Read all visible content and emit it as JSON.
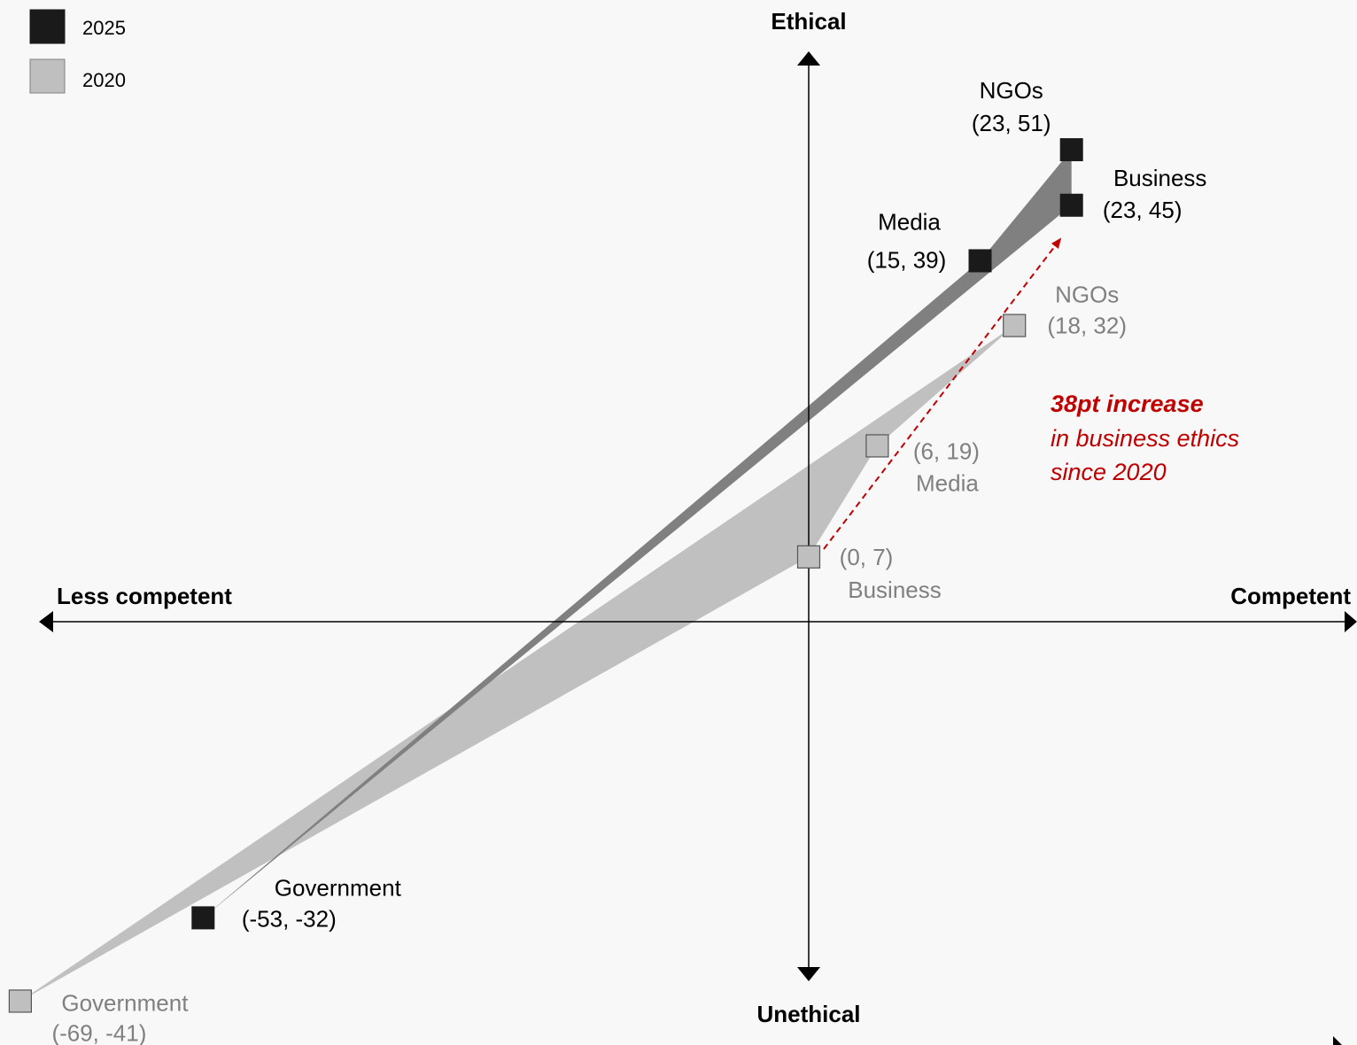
{
  "chart_data": {
    "type": "scatter",
    "x_axis": {
      "negative_label": "Less competent",
      "positive_label": "Competent"
    },
    "y_axis": {
      "positive_label": "Ethical",
      "negative_label": "Unethical"
    },
    "legend": [
      {
        "name": "2025",
        "color": "#1a1a1a"
      },
      {
        "name": "2020",
        "color": "#bfbfbf"
      }
    ],
    "series": [
      {
        "name": "2025",
        "points": [
          {
            "category": "NGOs",
            "x": 23,
            "y": 51,
            "label": "(23, 51)"
          },
          {
            "category": "Business",
            "x": 23,
            "y": 45,
            "label": "(23, 45)"
          },
          {
            "category": "Media",
            "x": 15,
            "y": 39,
            "label": "(15, 39)"
          },
          {
            "category": "Government",
            "x": -53,
            "y": -32,
            "label": "(-53, -32)"
          }
        ]
      },
      {
        "name": "2020",
        "points": [
          {
            "category": "NGOs",
            "x": 18,
            "y": 32,
            "label": "(18, 32)"
          },
          {
            "category": "Media",
            "x": 6,
            "y": 19,
            "label": "(6, 19)"
          },
          {
            "category": "Business",
            "x": 0,
            "y": 7,
            "label": "(0, 7)"
          },
          {
            "category": "Government",
            "x": -69,
            "y": -41,
            "label": "(-69, -41)"
          }
        ]
      }
    ],
    "annotation": {
      "headline": "38pt increase",
      "line1": "in business ethics",
      "line2": "since 2020",
      "color": "#c00000"
    },
    "colors": {
      "band_2025": "#808080",
      "band_2020": "#c0c0c0",
      "label_2020": "#808080",
      "label_2025": "#000000"
    }
  }
}
